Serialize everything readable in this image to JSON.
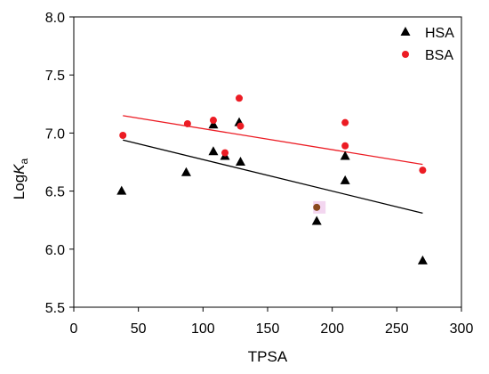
{
  "chart_data": {
    "type": "scatter",
    "xlabel": "TPSA",
    "ylabel": {
      "prefix": "Log",
      "symbol": "K",
      "subscript": "a"
    },
    "xlim": [
      0,
      300
    ],
    "ylim": [
      5.5,
      8.0
    ],
    "xticks": [
      "0",
      "50",
      "100",
      "150",
      "200",
      "250",
      "300"
    ],
    "yticks": [
      "5.5",
      "6.0",
      "6.5",
      "7.0",
      "7.5",
      "8.0"
    ],
    "grid": false,
    "legend": "top-right",
    "series": [
      {
        "name": "HSA",
        "marker": "triangle",
        "color": "#000000",
        "points": [
          {
            "x": 37,
            "y": 6.5
          },
          {
            "x": 87,
            "y": 6.66
          },
          {
            "x": 108,
            "y": 6.84
          },
          {
            "x": 108,
            "y": 7.07
          },
          {
            "x": 117,
            "y": 6.8
          },
          {
            "x": 128,
            "y": 7.09
          },
          {
            "x": 129,
            "y": 6.75
          },
          {
            "x": 188,
            "y": 6.24
          },
          {
            "x": 210,
            "y": 6.8
          },
          {
            "x": 210,
            "y": 6.59
          },
          {
            "x": 270,
            "y": 5.9
          }
        ],
        "fit": {
          "x": [
            38,
            270
          ],
          "y": [
            6.94,
            6.31
          ]
        }
      },
      {
        "name": "BSA",
        "marker": "circle",
        "color": "#ec1c24",
        "points": [
          {
            "x": 38,
            "y": 6.98
          },
          {
            "x": 88,
            "y": 7.08
          },
          {
            "x": 108,
            "y": 7.11
          },
          {
            "x": 117,
            "y": 6.83
          },
          {
            "x": 128,
            "y": 7.3
          },
          {
            "x": 129,
            "y": 7.06
          },
          {
            "x": 188,
            "y": 6.36,
            "color": "#8b4a1f",
            "bg": "#f3d6f0"
          },
          {
            "x": 210,
            "y": 7.09
          },
          {
            "x": 210,
            "y": 6.89
          },
          {
            "x": 270,
            "y": 6.68
          }
        ],
        "fit": {
          "x": [
            38,
            270
          ],
          "y": [
            7.15,
            6.73
          ]
        }
      }
    ]
  }
}
